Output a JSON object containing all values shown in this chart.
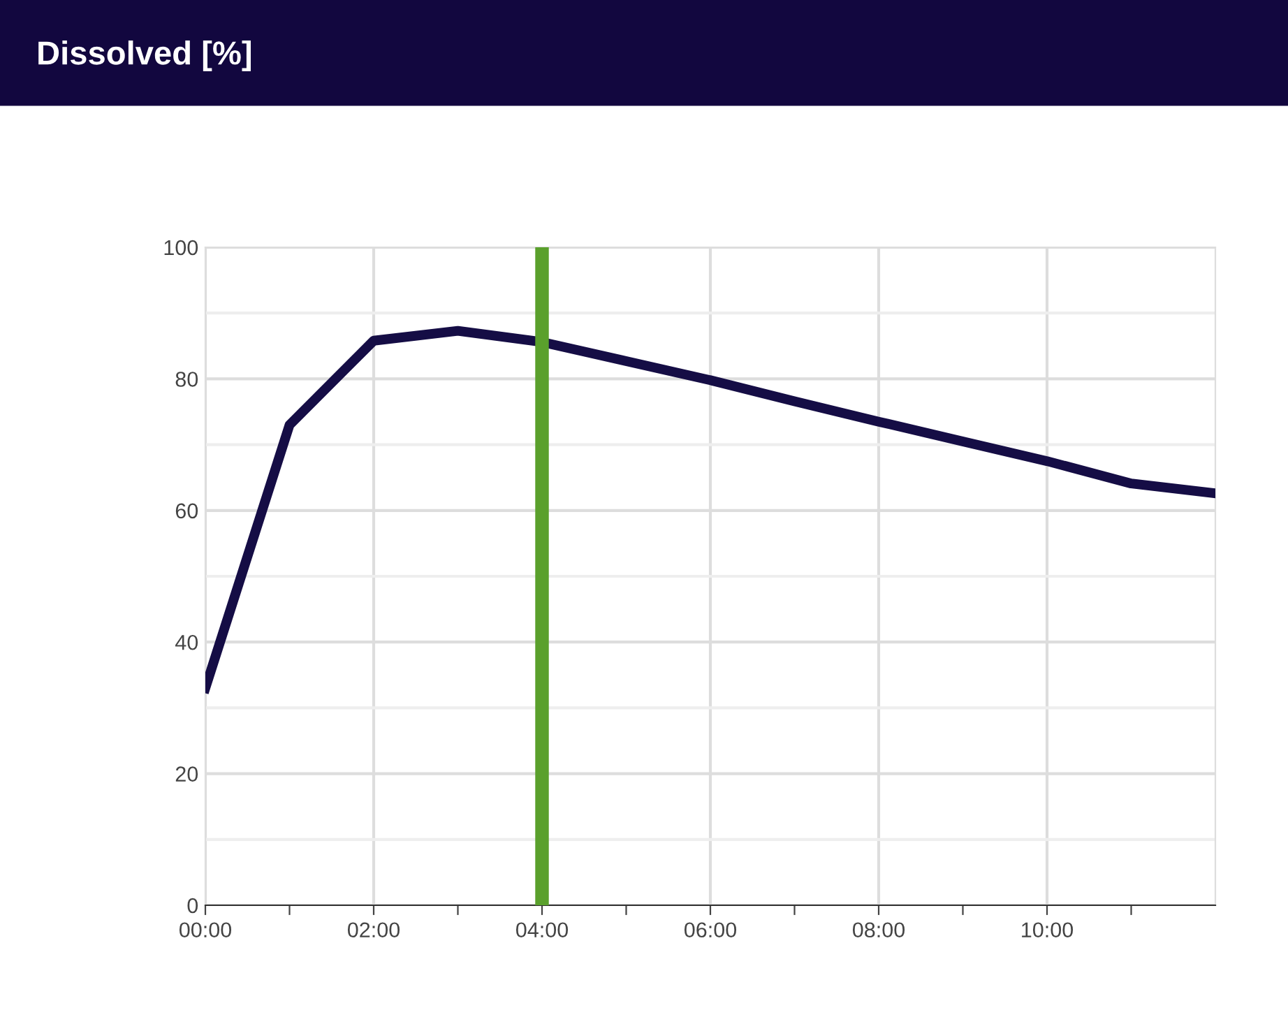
{
  "chart_data": {
    "type": "line",
    "title": "Dissolved [%]",
    "x": [
      0,
      1,
      2,
      3,
      4,
      5,
      6,
      7,
      8,
      9,
      10,
      11,
      12
    ],
    "series": [
      {
        "color": "#150d45",
        "values": [
          33,
          73,
          85.8,
          87.3,
          85.6,
          82.7,
          79.8,
          76.6,
          73.5,
          70.5,
          67.5,
          64.1,
          62.6
        ]
      }
    ],
    "xlim": [
      0,
      12
    ],
    "xticks": [
      {
        "value": 0,
        "label": "00:00"
      },
      {
        "value": 1,
        "label": null
      },
      {
        "value": 2,
        "label": "02:00"
      },
      {
        "value": 3,
        "label": null
      },
      {
        "value": 4,
        "label": "04:00"
      },
      {
        "value": 5,
        "label": null
      },
      {
        "value": 6,
        "label": "06:00"
      },
      {
        "value": 7,
        "label": null
      },
      {
        "value": 8,
        "label": "08:00"
      },
      {
        "value": 9,
        "label": null
      },
      {
        "value": 10,
        "label": "10:00"
      },
      {
        "value": 11,
        "label": null
      }
    ],
    "ylim": [
      0,
      100
    ],
    "yticks": [
      0,
      {
        "value": 10,
        "label": null
      },
      20,
      {
        "value": 30,
        "label": null
      },
      40,
      {
        "value": 50,
        "label": null
      },
      60,
      {
        "value": 70,
        "label": null
      },
      80,
      {
        "value": 90,
        "label": null
      },
      100
    ],
    "ref_lines": [
      {
        "axis": "x",
        "value": 4,
        "color": "#5aa02c"
      }
    ],
    "grid": true,
    "legend": false,
    "marker": "none",
    "line_style": "solid"
  }
}
